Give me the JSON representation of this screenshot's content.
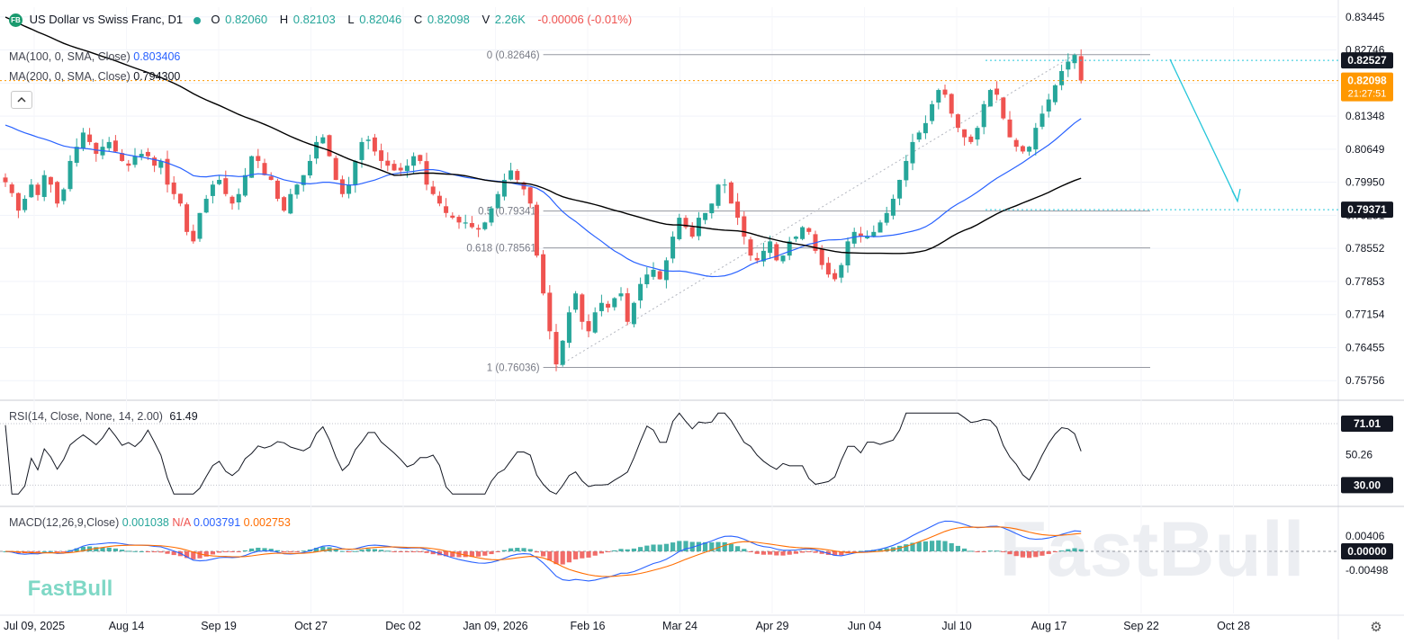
{
  "header": {
    "logo_text": "FB",
    "symbol": "US Dollar vs Swiss Franc, D1",
    "open_label": "O",
    "open": "0.82060",
    "high_label": "H",
    "high": "0.82103",
    "low_label": "L",
    "low": "0.82046",
    "close_label": "C",
    "close": "0.82098",
    "volume_label": "V",
    "volume": "2.26K",
    "change": "-0.00006 (-0.01%)"
  },
  "indicators": {
    "ma100_label": "MA(100, 0, SMA, Close)",
    "ma100_value": "0.803406",
    "ma200_label": "MA(200, 0, SMA, Close)",
    "ma200_value": "0.794300",
    "rsi_label": "RSI(14, Close, None, 14, 2.00)",
    "rsi_value": "61.49",
    "macd_label": "MACD(12,26,9,Close)",
    "macd_hist": "0.001038",
    "macd_na": "N/A",
    "macd_line": "0.003791",
    "macd_signal": "0.002753"
  },
  "watermark": "FastBull",
  "colors": {
    "up": "#26a69a",
    "down": "#ef5350",
    "ma100": "#2962ff",
    "ma200": "#000000",
    "macd_line": "#2962ff",
    "macd_signal": "#ff6d00",
    "accent_cyan": "#26c6da",
    "price_tag": "#ff9800",
    "hist_up": "#26a69a",
    "hist_down": "#ef5350"
  },
  "icons": {
    "settings": "gear-icon",
    "collapse": "chevron-up-icon",
    "logo": "fastbull-logo-icon"
  },
  "chart_data": {
    "type": "candlestick",
    "timeframe": "D1",
    "x_ticks": [
      "Jul 09, 2025",
      "Aug 14",
      "Sep 19",
      "Oct 27",
      "Dec 02",
      "Jan 09, 2026",
      "Feb 16",
      "Mar 24",
      "Apr 29",
      "Jun 04",
      "Jul 10",
      "Aug 17",
      "Sep 22",
      "Oct 28"
    ],
    "y_ticks": [
      "0.83445",
      "0.82746",
      "0.82047",
      "0.81348",
      "0.80649",
      "0.79950",
      "0.79251",
      "0.78552",
      "0.77853",
      "0.77154",
      "0.76455",
      "0.75756"
    ],
    "ylim": [
      0.7538,
      0.8365
    ],
    "price_tags": [
      {
        "label": "0.82527",
        "value": 0.82527,
        "color": "#131722"
      },
      {
        "label": "0.82098",
        "value": 0.82098,
        "color": "#ff9800",
        "sub": "21:27:51"
      },
      {
        "label": "0.79371",
        "value": 0.79371,
        "color": "#131722"
      }
    ],
    "fibonacci": [
      {
        "label": "0 (0.82646)",
        "value": 0.82646
      },
      {
        "label": "0.5 (0.79341)",
        "value": 0.79341
      },
      {
        "label": "0.618 (0.78561)",
        "value": 0.78561
      },
      {
        "label": "1 (0.76036)",
        "value": 0.76036
      }
    ],
    "closes": [
      0.7995,
      0.7972,
      0.7935,
      0.796,
      0.799,
      0.7968,
      0.801,
      0.799,
      0.795,
      0.798,
      0.804,
      0.807,
      0.81,
      0.808,
      0.8055,
      0.807,
      0.808,
      0.806,
      0.804,
      0.803,
      0.805,
      0.8055,
      0.805,
      0.803,
      0.804,
      0.799,
      0.797,
      0.795,
      0.789,
      0.787,
      0.793,
      0.796,
      0.799,
      0.8,
      0.797,
      0.795,
      0.797,
      0.801,
      0.805,
      0.804,
      0.801,
      0.8,
      0.796,
      0.7935,
      0.797,
      0.799,
      0.801,
      0.804,
      0.808,
      0.809,
      0.805,
      0.8,
      0.797,
      0.799,
      0.804,
      0.808,
      0.8085,
      0.806,
      0.804,
      0.803,
      0.802,
      0.802,
      0.803,
      0.805,
      0.804,
      0.799,
      0.797,
      0.795,
      0.793,
      0.792,
      0.791,
      0.791,
      0.79,
      0.7895,
      0.791,
      0.794,
      0.797,
      0.8,
      0.802,
      0.8,
      0.798,
      0.795,
      0.784,
      0.776,
      0.768,
      0.761,
      0.766,
      0.772,
      0.776,
      0.77,
      0.768,
      0.772,
      0.774,
      0.773,
      0.775,
      0.776,
      0.77,
      0.774,
      0.778,
      0.78,
      0.781,
      0.779,
      0.783,
      0.788,
      0.792,
      0.79,
      0.788,
      0.792,
      0.793,
      0.795,
      0.799,
      0.799,
      0.795,
      0.792,
      0.788,
      0.784,
      0.783,
      0.785,
      0.787,
      0.783,
      0.784,
      0.787,
      0.788,
      0.79,
      0.789,
      0.785,
      0.782,
      0.78,
      0.779,
      0.782,
      0.787,
      0.789,
      0.788,
      0.788,
      0.789,
      0.791,
      0.793,
      0.796,
      0.8,
      0.804,
      0.808,
      0.81,
      0.812,
      0.816,
      0.819,
      0.818,
      0.814,
      0.811,
      0.809,
      0.808,
      0.811,
      0.816,
      0.819,
      0.818,
      0.813,
      0.809,
      0.807,
      0.806,
      0.807,
      0.811,
      0.814,
      0.817,
      0.82,
      0.823,
      0.825,
      0.8264,
      0.821
    ]
  }
}
